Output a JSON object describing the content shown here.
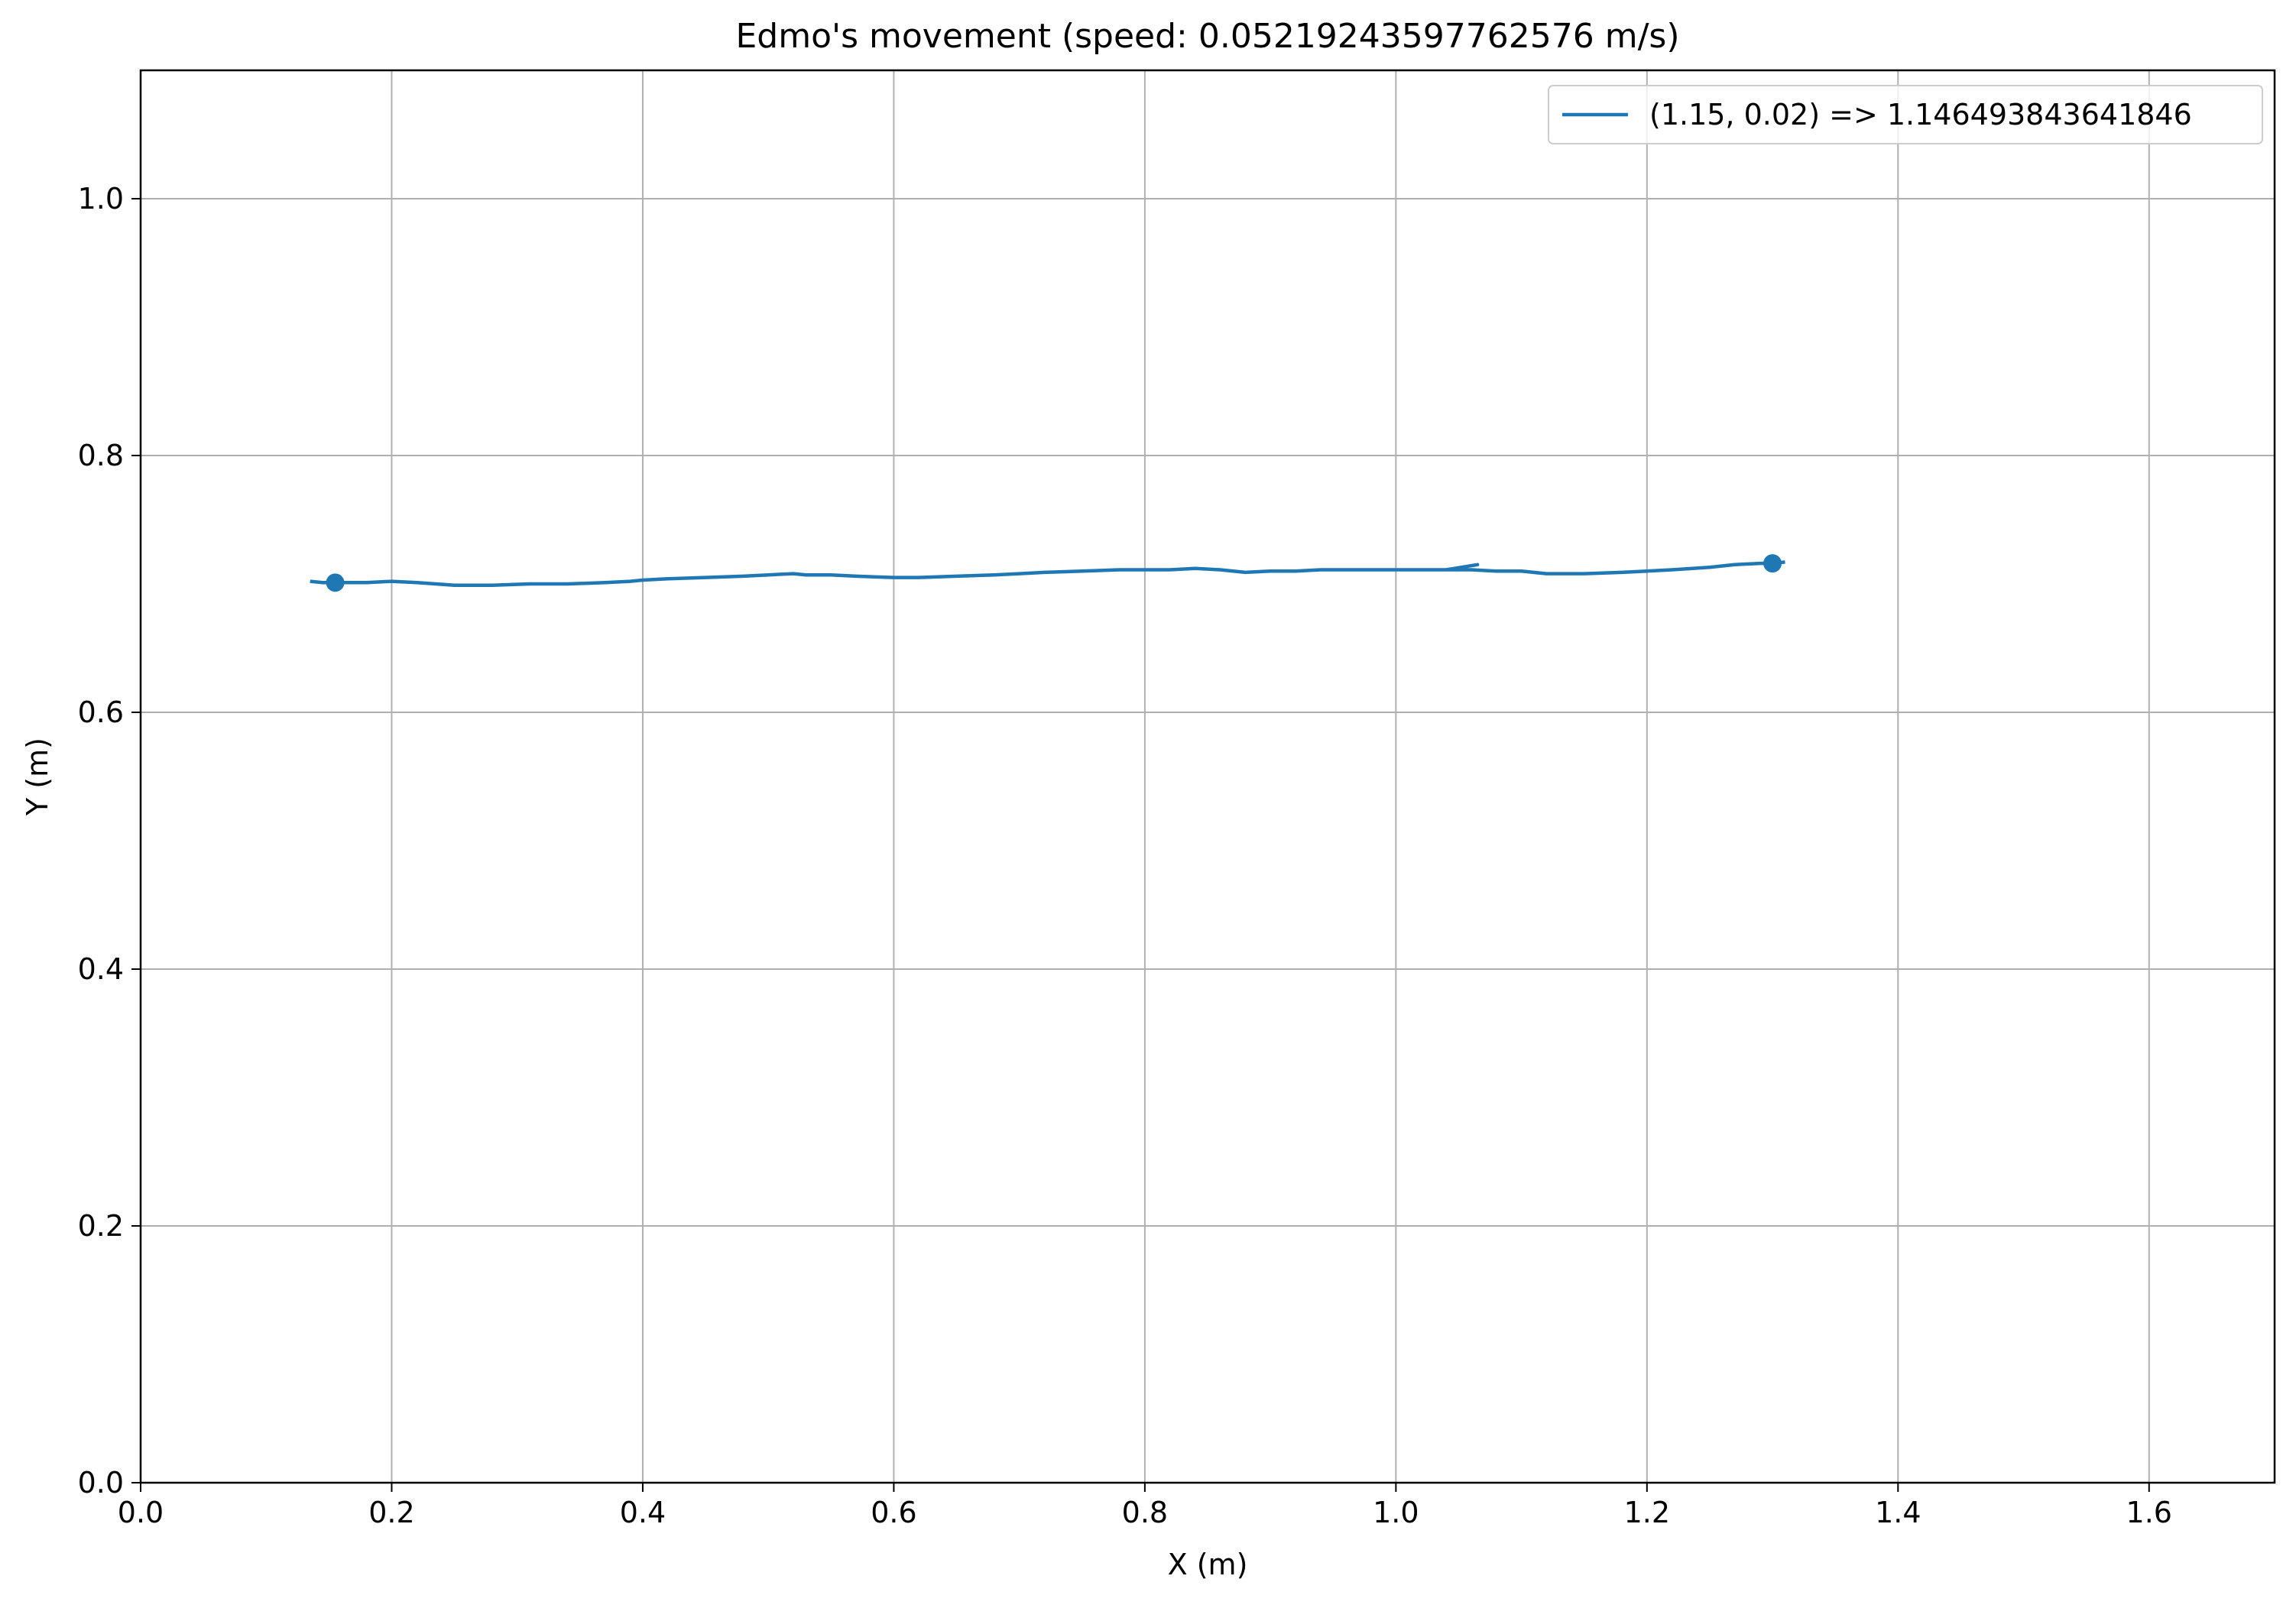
{
  "chart_data": {
    "type": "line",
    "title": "Edmo's movement (speed: 0.05219243597762576 m/s)",
    "xlabel": "X (m)",
    "ylabel": "Y (m)",
    "xlim": [
      0,
      1.7
    ],
    "ylim": [
      0,
      1.1
    ],
    "xticks": [
      0.0,
      0.2,
      0.4,
      0.6,
      0.8,
      1.0,
      1.2,
      1.4,
      1.6
    ],
    "yticks": [
      0.0,
      0.2,
      0.4,
      0.6,
      0.8,
      1.0
    ],
    "xtick_labels": [
      "0.0",
      "0.2",
      "0.4",
      "0.6",
      "0.8",
      "1.0",
      "1.2",
      "1.4",
      "1.6"
    ],
    "ytick_labels": [
      "0.0",
      "0.2",
      "0.4",
      "0.6",
      "0.8",
      "1.0"
    ],
    "grid": true,
    "legend_position": "top-right",
    "series": [
      {
        "name": "(1.15, 0.02) => 1.146493843641846",
        "color": "#1f77b4",
        "x": [
          0.135,
          0.145,
          0.155,
          0.18,
          0.2,
          0.22,
          0.25,
          0.28,
          0.31,
          0.34,
          0.37,
          0.39,
          0.4,
          0.42,
          0.45,
          0.48,
          0.5,
          0.52,
          0.53,
          0.55,
          0.57,
          0.6,
          0.62,
          0.65,
          0.68,
          0.7,
          0.72,
          0.75,
          0.78,
          0.8,
          0.82,
          0.84,
          0.86,
          0.88,
          0.9,
          0.92,
          0.94,
          0.96,
          0.98,
          1.0,
          1.02,
          1.04,
          1.065,
          1.04,
          1.06,
          1.08,
          1.1,
          1.12,
          1.15,
          1.18,
          1.2,
          1.22,
          1.25,
          1.27,
          1.29,
          1.3,
          1.31
        ],
        "y": [
          0.702,
          0.701,
          0.701,
          0.701,
          0.702,
          0.701,
          0.699,
          0.699,
          0.7,
          0.7,
          0.701,
          0.702,
          0.703,
          0.704,
          0.705,
          0.706,
          0.707,
          0.708,
          0.707,
          0.707,
          0.706,
          0.705,
          0.705,
          0.706,
          0.707,
          0.708,
          0.709,
          0.71,
          0.711,
          0.711,
          0.711,
          0.712,
          0.711,
          0.709,
          0.71,
          0.71,
          0.711,
          0.711,
          0.711,
          0.711,
          0.711,
          0.711,
          0.715,
          0.711,
          0.711,
          0.71,
          0.71,
          0.708,
          0.708,
          0.709,
          0.71,
          0.711,
          0.713,
          0.715,
          0.716,
          0.716,
          0.717
        ]
      }
    ],
    "markers": [
      {
        "x": 0.155,
        "y": 0.701
      },
      {
        "x": 1.3,
        "y": 0.716
      }
    ]
  }
}
